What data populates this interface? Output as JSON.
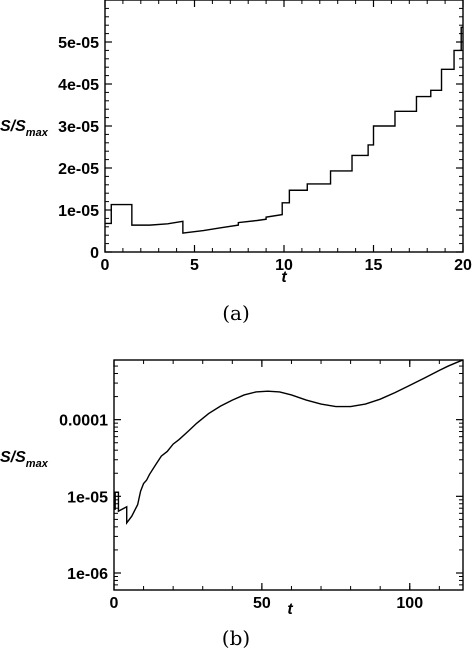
{
  "chart_data": [
    {
      "id": "a",
      "type": "line",
      "caption": "(a)",
      "xlabel": "t",
      "ylabel_main": "S/S",
      "ylabel_sub": "max",
      "xlim": [
        0,
        20
      ],
      "ylim": [
        0,
        6e-05
      ],
      "yscale": "linear",
      "x_ticks": [
        0,
        5,
        10,
        15,
        20
      ],
      "x_tick_labels": [
        "0",
        "5",
        "10",
        "15",
        "20"
      ],
      "y_ticks": [
        0,
        1e-05,
        2e-05,
        3e-05,
        4e-05,
        5e-05
      ],
      "y_tick_labels": [
        "0",
        "1e-05",
        "2e-05",
        "3e-05",
        "4e-05",
        "5e-05"
      ],
      "grid": false,
      "series": [
        {
          "x": [
            0.0,
            0.35,
            0.35,
            1.5,
            1.5,
            2.5,
            3.5,
            4.35,
            4.35,
            5.5,
            6.5,
            7.45,
            7.45,
            8.5,
            9.0,
            9.0,
            9.9,
            9.9,
            10.3,
            10.3,
            11.3,
            11.3,
            12.6,
            12.6,
            13.8,
            13.8,
            14.7,
            14.7,
            15.0,
            15.0,
            16.2,
            16.2,
            17.4,
            17.4,
            18.2,
            18.2,
            18.8,
            18.8,
            19.5,
            19.5,
            19.9,
            19.9,
            20.0
          ],
          "y": [
            6.8e-06,
            6.8e-06,
            1.13e-05,
            1.13e-05,
            6.4e-06,
            6.4e-06,
            6.7e-06,
            7.3e-06,
            4.5e-06,
            5.1e-06,
            5.8e-06,
            6.4e-06,
            7e-06,
            7.5e-06,
            7.8e-06,
            8.3e-06,
            8.9e-06,
            1.17e-05,
            1.17e-05,
            1.47e-05,
            1.47e-05,
            1.62e-05,
            1.62e-05,
            1.93e-05,
            1.93e-05,
            2.3e-05,
            2.3e-05,
            2.55e-05,
            2.55e-05,
            3e-05,
            3e-05,
            3.35e-05,
            3.35e-05,
            3.7e-05,
            3.7e-05,
            3.85e-05,
            3.85e-05,
            4.35e-05,
            4.35e-05,
            4.8e-05,
            4.8e-05,
            5.35e-05,
            5.35e-05
          ]
        }
      ]
    },
    {
      "id": "b",
      "type": "line",
      "caption": "(b)",
      "xlabel": "t",
      "ylabel_main": "S/S",
      "ylabel_sub": "max",
      "xlim": [
        0,
        118
      ],
      "ylim": [
        6e-07,
        0.0006
      ],
      "yscale": "log",
      "x_ticks": [
        0,
        50,
        100
      ],
      "x_tick_labels": [
        "0",
        "50",
        "100"
      ],
      "y_ticks": [
        1e-06,
        1e-05,
        0.0001
      ],
      "y_tick_labels": [
        "1e-06",
        "1e-05",
        "0.0001"
      ],
      "grid": false,
      "series": [
        {
          "x": [
            0,
            0.4,
            0.4,
            1.5,
            1.5,
            4.3,
            4.3,
            6,
            8,
            9,
            10,
            11,
            12,
            14,
            16,
            18,
            20,
            22,
            25,
            28,
            32,
            36,
            40,
            44,
            48,
            52,
            56,
            60,
            65,
            70,
            75,
            80,
            85,
            90,
            95,
            100,
            105,
            110,
            113,
            116,
            118
          ],
          "y": [
            6.8e-06,
            6.8e-06,
            1.13e-05,
            1.13e-05,
            6.4e-06,
            7.3e-06,
            4.5e-06,
            5.5e-06,
            7.8e-06,
            1.17e-05,
            1.47e-05,
            1.62e-05,
            1.93e-05,
            2.55e-05,
            3.35e-05,
            3.85e-05,
            4.8e-05,
            5.5e-05,
            7e-05,
            9e-05,
            0.00012,
            0.00015,
            0.00018,
            0.00021,
            0.00023,
            0.000235,
            0.00023,
            0.00021,
            0.00018,
            0.00016,
            0.000148,
            0.000148,
            0.00016,
            0.000185,
            0.000225,
            0.00028,
            0.00035,
            0.00044,
            0.0005,
            0.00056,
            0.0006
          ]
        }
      ]
    }
  ]
}
